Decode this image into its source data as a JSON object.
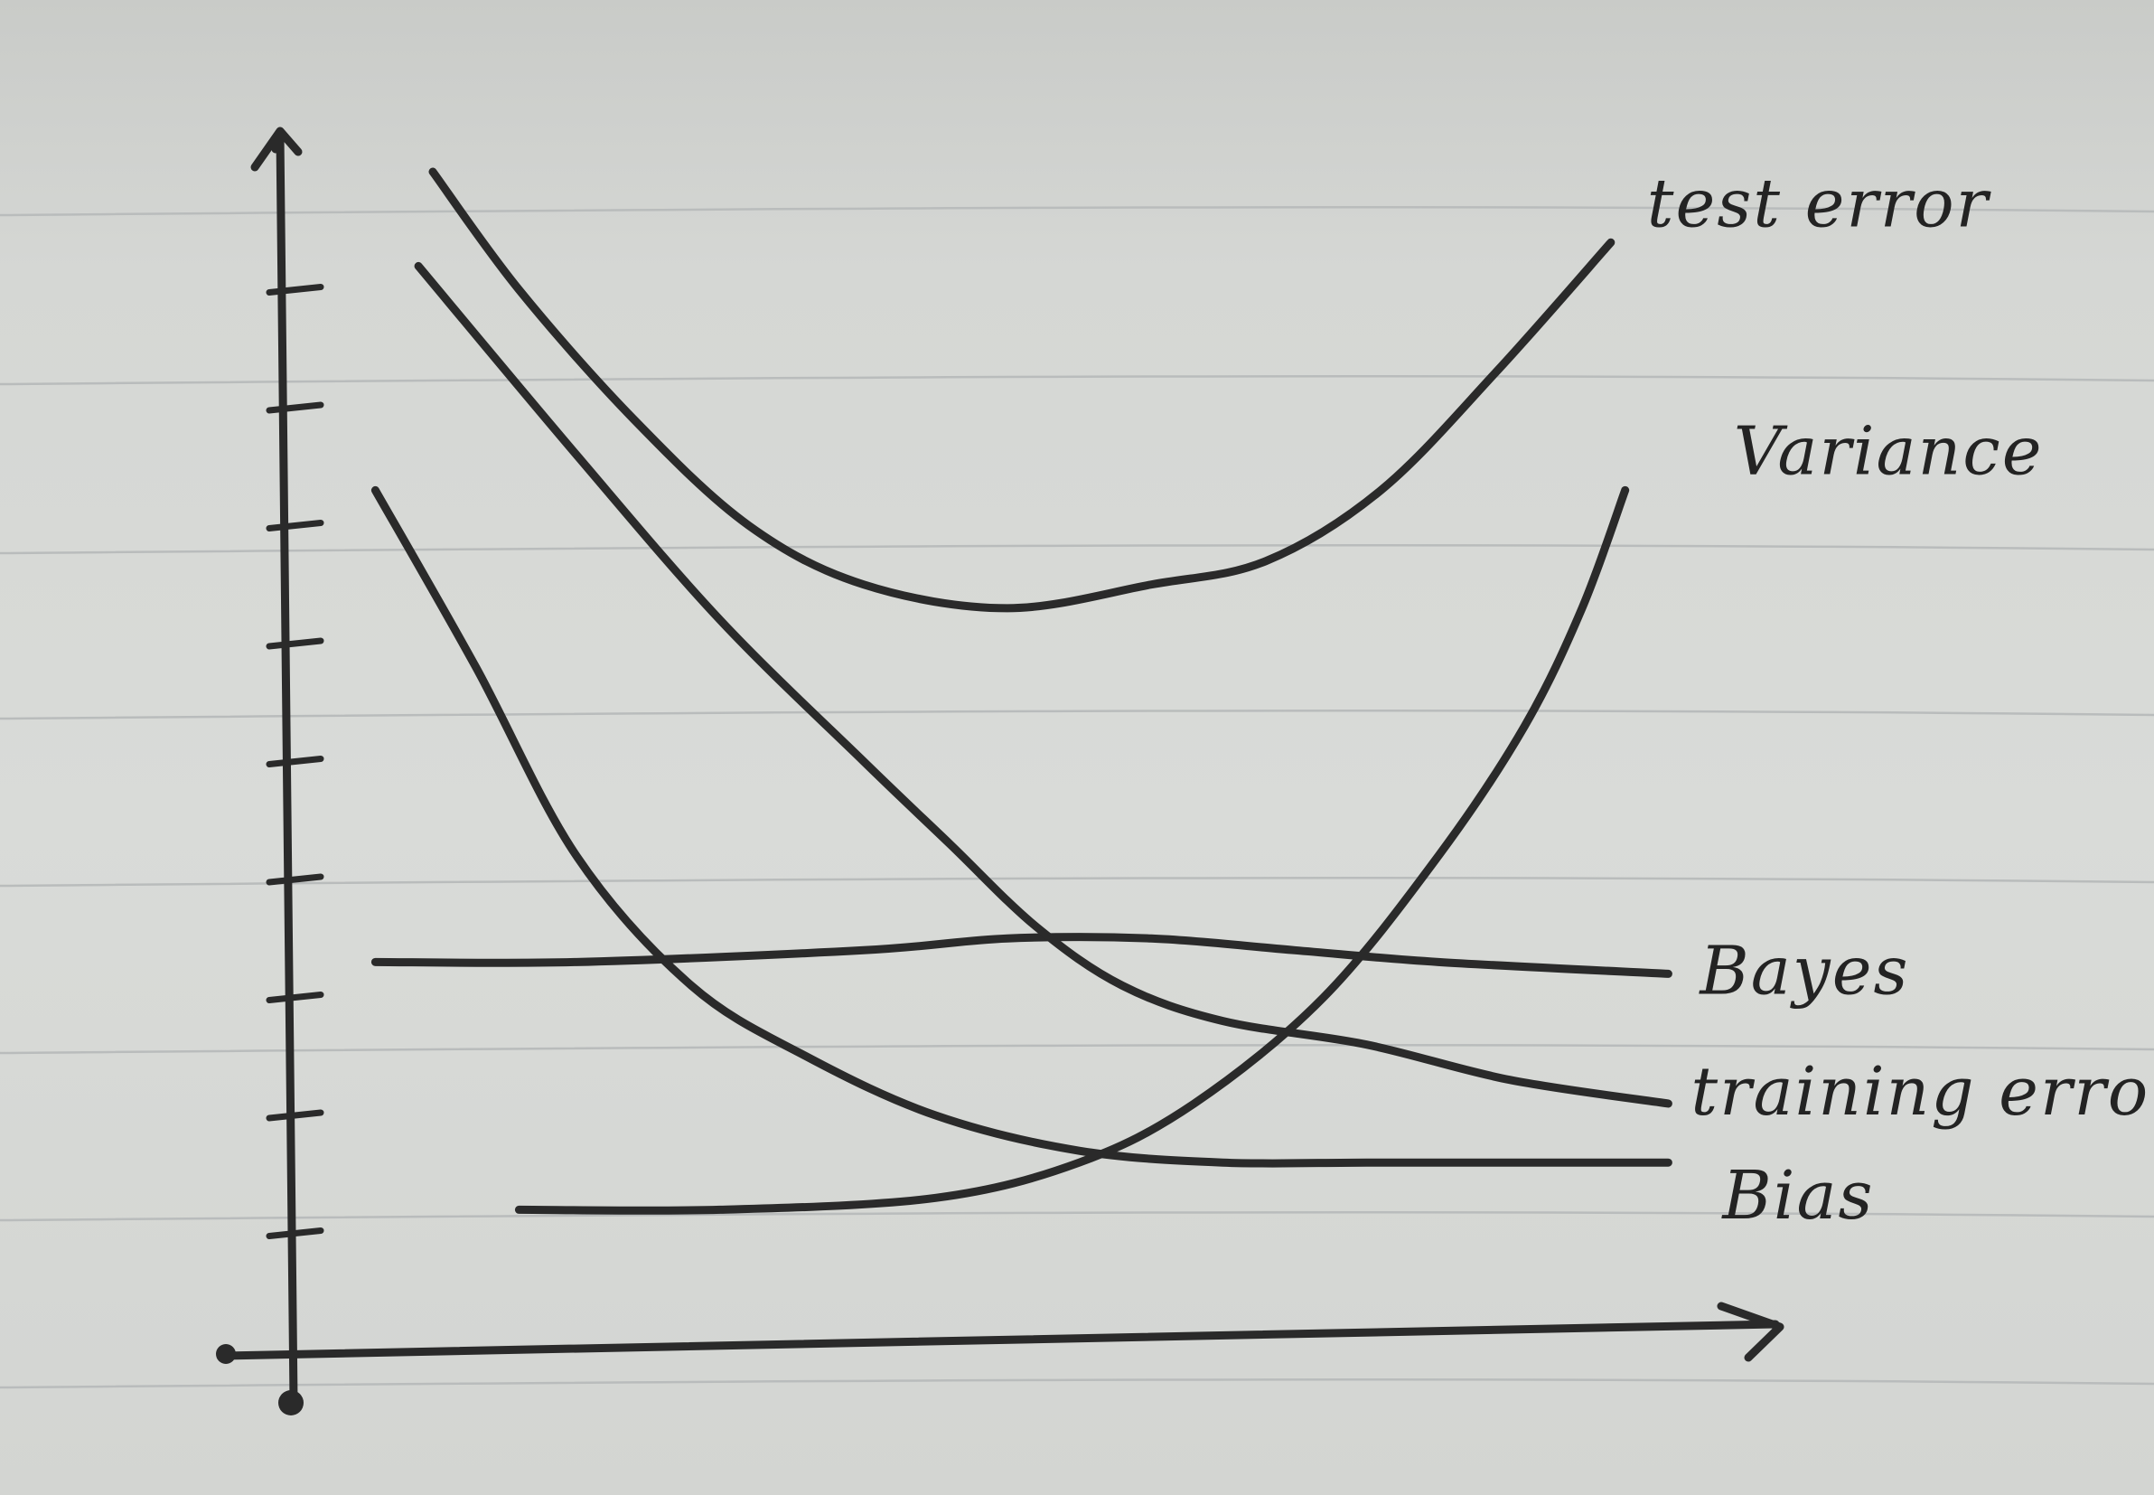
{
  "chart_data": {
    "type": "line",
    "title": "",
    "xlabel": "",
    "ylabel": "",
    "xlim": [
      0,
      10
    ],
    "ylim": [
      0,
      10
    ],
    "y_ticks": [
      1,
      2,
      3,
      4,
      5,
      6,
      7,
      8,
      9
    ],
    "grid": false,
    "legend": "labels at right end of each curve",
    "ink_color": "#2a2a2a",
    "paper_color": "#d9dbd8",
    "series": [
      {
        "name": "test error",
        "x": [
          1.0,
          1.6,
          2.4,
          3.2,
          4.0,
          5.0,
          6.0,
          6.8,
          7.6,
          8.4,
          9.2
        ],
        "y": [
          10.0,
          9.0,
          7.9,
          7.0,
          6.5,
          6.3,
          6.5,
          6.7,
          7.3,
          8.3,
          9.4
        ]
      },
      {
        "name": "Variance",
        "x": [
          1.6,
          3.0,
          4.5,
          5.5,
          6.3,
          7.2,
          8.0,
          8.6,
          9.0,
          9.3
        ],
        "y": [
          1.2,
          1.2,
          1.3,
          1.6,
          2.1,
          3.0,
          4.2,
          5.3,
          6.3,
          7.3
        ]
      },
      {
        "name": "Bayes",
        "x": [
          0.6,
          2.0,
          4.0,
          5.0,
          6.0,
          7.0,
          8.0,
          9.6
        ],
        "y": [
          3.3,
          3.3,
          3.4,
          3.5,
          3.5,
          3.4,
          3.3,
          3.2
        ]
      },
      {
        "name": "training error",
        "x": [
          0.9,
          2.0,
          3.0,
          4.0,
          4.6,
          5.2,
          5.8,
          6.5,
          7.5,
          8.5,
          9.6
        ],
        "y": [
          9.2,
          7.6,
          6.2,
          5.0,
          4.3,
          3.6,
          3.1,
          2.8,
          2.6,
          2.3,
          2.1
        ]
      },
      {
        "name": "Bias",
        "x": [
          0.6,
          1.3,
          2.0,
          2.8,
          3.6,
          4.5,
          5.5,
          6.5,
          7.5,
          8.5,
          9.6
        ],
        "y": [
          7.3,
          5.8,
          4.2,
          3.1,
          2.5,
          2.0,
          1.7,
          1.6,
          1.6,
          1.6,
          1.6
        ]
      }
    ]
  }
}
